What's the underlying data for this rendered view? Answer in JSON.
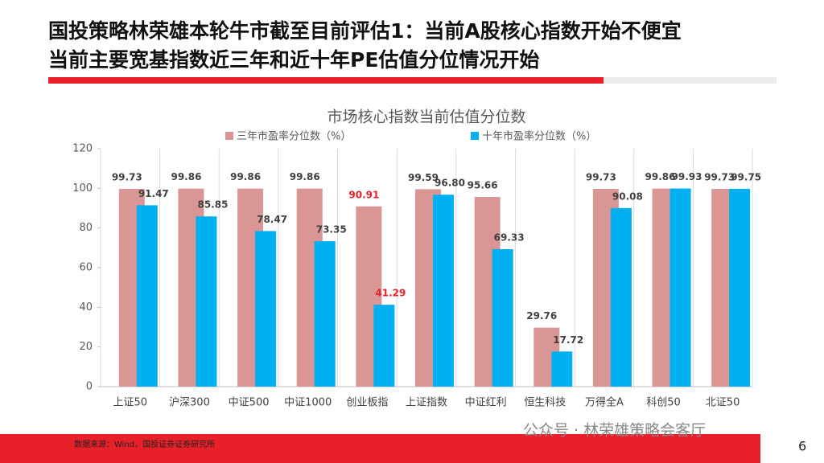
{
  "header": {
    "title_lines": [
      "国投策略林荣雄本轮牛市截至目前评估1：当前A股核心指数开始不便宜",
      "当前主要宽基指数近三年和近十年PE估值分位情况开始"
    ]
  },
  "chart_data": {
    "type": "bar",
    "title": "市场核心指数当前估值分位数",
    "categories": [
      "上证50",
      "沪深300",
      "中证500",
      "中证1000",
      "创业板指",
      "上证指数",
      "中证红利",
      "恒生科技",
      "万得全A",
      "科创50",
      "北证50"
    ],
    "series": [
      {
        "name": "三年市盈率分位数（%）",
        "color": "#d99694",
        "values": [
          99.73,
          99.86,
          99.86,
          99.86,
          90.91,
          99.59,
          95.66,
          29.76,
          99.73,
          99.86,
          99.73
        ],
        "value_labels": [
          "99.73",
          "99.86",
          "99.86",
          "99.86",
          "90.91",
          "99.59",
          "95.66",
          "29.76",
          "99.73",
          "99.86",
          "99.73"
        ]
      },
      {
        "name": "十年市盈率分位数（%）",
        "color": "#00b0f0",
        "values": [
          91.47,
          85.85,
          78.47,
          73.35,
          41.29,
          96.8,
          69.33,
          17.72,
          90.08,
          99.93,
          99.75
        ],
        "value_labels": [
          "91.47",
          "85.85",
          "78.47",
          "73.35",
          "41.29",
          "96.80",
          "69.33",
          "17.72",
          "90.08",
          "99.93",
          "99.75"
        ]
      }
    ],
    "ylim": [
      0,
      120
    ],
    "yticks": [
      0,
      20,
      40,
      60,
      80,
      100,
      120
    ],
    "label_highlight": {
      "category": "创业板指",
      "color": "#e8202a"
    }
  },
  "footer": {
    "source": "数据来源：Wind，国投证券证券研究所",
    "watermark": "公众号 · 林荣雄策略会客厅",
    "page_number": 6
  }
}
